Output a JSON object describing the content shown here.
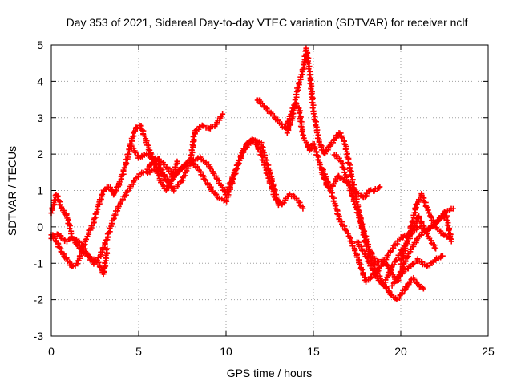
{
  "chart_data": {
    "type": "scatter",
    "title": "Day 353 of 2021, Sidereal Day-to-day VTEC variation (SDTVAR) for receiver nclf",
    "xlabel": "GPS time / hours",
    "ylabel": "SDTVAR / TECUs",
    "xlim": [
      0,
      25
    ],
    "ylim": [
      -3,
      5
    ],
    "xticks": [
      0,
      5,
      10,
      15,
      20,
      25
    ],
    "yticks": [
      -3,
      -2,
      -1,
      0,
      1,
      2,
      3,
      4,
      5
    ],
    "grid": true,
    "marker": "plus",
    "color": "#ff0000",
    "series": [
      {
        "x": [
          0.0,
          0.3,
          0.6,
          0.9,
          1.2,
          1.5,
          1.8,
          2.1,
          2.4,
          2.7,
          3.0,
          3.2
        ],
        "y": [
          0.4,
          0.9,
          0.5,
          0.3,
          -0.3,
          -0.5,
          -0.7,
          -0.8,
          -0.9,
          -1.0,
          -1.3,
          -0.6
        ]
      },
      {
        "x": [
          0.0,
          0.3,
          0.6,
          0.9,
          1.2,
          1.5,
          1.8,
          2.1,
          2.4,
          2.7,
          3.0,
          3.3,
          3.6,
          3.9,
          4.2,
          4.5,
          4.8,
          5.1,
          5.4,
          5.7,
          6.0,
          6.3,
          6.6,
          6.9,
          7.2
        ],
        "y": [
          -0.2,
          -0.4,
          -0.7,
          -0.9,
          -1.1,
          -1.0,
          -0.6,
          -0.2,
          0.1,
          0.6,
          1.0,
          1.1,
          0.9,
          1.2,
          1.6,
          2.2,
          2.7,
          2.8,
          2.4,
          2.0,
          1.6,
          1.2,
          1.0,
          1.3,
          1.8
        ]
      },
      {
        "x": [
          0.0,
          0.4,
          0.8,
          1.2,
          1.6,
          2.0,
          2.4,
          2.8,
          3.2,
          3.6,
          4.0,
          4.4,
          4.8,
          5.2,
          5.6,
          6.0,
          6.4,
          6.8,
          7.2,
          7.6,
          8.0,
          8.4,
          8.8,
          9.2,
          9.6,
          10.0,
          10.4,
          10.8,
          11.2,
          11.6,
          12.0,
          12.4,
          12.8,
          13.2,
          13.6,
          14.0,
          14.4
        ],
        "y": [
          -0.3,
          -0.2,
          -0.4,
          -0.3,
          -0.4,
          -0.7,
          -1.0,
          -0.8,
          -0.3,
          0.3,
          0.7,
          1.0,
          1.3,
          1.5,
          1.5,
          1.6,
          1.4,
          1.2,
          1.5,
          1.7,
          1.8,
          1.6,
          1.3,
          1.0,
          0.8,
          0.7,
          1.3,
          1.9,
          2.3,
          2.4,
          2.0,
          1.4,
          0.8,
          0.6,
          0.9,
          0.8,
          0.5
        ]
      },
      {
        "x": [
          4.5,
          5.0,
          5.5,
          6.0,
          6.5,
          7.0,
          7.5,
          8.0,
          8.5,
          9.0,
          9.5,
          10.0,
          10.5,
          11.0,
          11.5,
          12.0,
          12.5,
          13.0
        ],
        "y": [
          2.3,
          1.9,
          2.0,
          1.8,
          1.4,
          1.0,
          1.3,
          1.8,
          1.9,
          1.7,
          1.3,
          0.9,
          1.5,
          2.1,
          2.4,
          2.3,
          1.5,
          0.6
        ]
      },
      {
        "x": [
          5.5,
          6.0,
          6.5,
          7.0,
          7.5,
          8.0,
          8.2,
          8.6,
          9.0,
          9.4,
          9.8
        ],
        "y": [
          1.6,
          1.9,
          1.7,
          1.4,
          1.6,
          1.9,
          2.6,
          2.8,
          2.7,
          2.8,
          3.1
        ]
      },
      {
        "x": [
          11.8,
          12.2,
          12.6,
          13.0,
          13.4,
          13.8,
          14.0,
          14.2,
          14.4,
          14.6,
          14.8,
          15.0,
          15.2,
          15.5,
          15.8,
          16.1,
          16.4,
          16.7,
          17.0,
          17.3,
          17.6,
          17.9,
          18.2,
          18.5,
          18.8
        ],
        "y": [
          3.5,
          3.3,
          3.1,
          2.9,
          2.7,
          3.2,
          3.4,
          3.2,
          2.5,
          2.3,
          2.1,
          2.3,
          2.0,
          1.5,
          1.1,
          1.1,
          1.4,
          1.3,
          1.2,
          1.0,
          0.9,
          0.8,
          1.0,
          1.0,
          1.1
        ]
      },
      {
        "x": [
          13.5,
          13.8,
          14.1,
          14.4,
          14.6,
          14.8,
          15.0,
          15.3,
          15.6,
          15.9,
          16.2,
          16.5,
          16.8,
          17.1,
          17.4,
          17.7,
          18.0,
          18.3,
          18.6,
          18.9,
          19.2,
          19.5,
          19.8,
          20.1,
          20.4,
          20.7,
          21.0,
          21.3
        ],
        "y": [
          2.6,
          3.0,
          3.8,
          4.3,
          4.9,
          4.2,
          3.2,
          2.4,
          2.0,
          2.2,
          2.4,
          2.6,
          2.3,
          1.6,
          0.9,
          0.2,
          -0.5,
          -0.9,
          -1.2,
          -1.5,
          -1.7,
          -1.9,
          -2.0,
          -1.8,
          -1.6,
          -1.4,
          -1.6,
          -1.7
        ]
      },
      {
        "x": [
          15.5,
          16.0,
          16.5,
          17.0,
          17.5,
          18.0,
          18.5,
          19.0,
          19.5,
          20.0,
          20.5,
          21.0,
          21.5,
          22.0,
          22.5,
          23.0
        ],
        "y": [
          1.6,
          1.0,
          0.2,
          -0.2,
          -0.8,
          -1.5,
          -1.3,
          -1.0,
          -0.6,
          -0.3,
          -0.2,
          0.0,
          -0.1,
          0.1,
          0.4,
          0.5
        ]
      },
      {
        "x": [
          16.2,
          16.6,
          17.0,
          17.4,
          17.8,
          18.2,
          18.6,
          19.0,
          19.4,
          19.8,
          20.2,
          20.6,
          21.0,
          21.4,
          21.8,
          22.2,
          22.6,
          22.9
        ],
        "y": [
          2.0,
          1.8,
          1.2,
          0.6,
          0.0,
          -0.6,
          -1.0,
          -0.9,
          -1.2,
          -1.5,
          -1.0,
          -0.6,
          -0.3,
          -0.1,
          0.0,
          0.2,
          0.3,
          -0.4
        ]
      },
      {
        "x": [
          17.5,
          18.0,
          18.5,
          19.0,
          19.5,
          20.0,
          20.5,
          21.0,
          21.5,
          22.0
        ],
        "y": [
          -0.4,
          -0.8,
          -1.3,
          -1.6,
          -1.1,
          -0.7,
          -0.3,
          0.3,
          -0.2,
          -0.6
        ]
      },
      {
        "x": [
          19.5,
          20.0,
          20.5,
          21.0,
          21.5,
          22.0,
          22.4
        ],
        "y": [
          -1.6,
          -1.3,
          -1.1,
          -0.9,
          -1.1,
          -0.9,
          -0.8
        ]
      },
      {
        "x": [
          20.0,
          20.3,
          20.6,
          20.9,
          21.2,
          21.6,
          22.0,
          22.4,
          22.8
        ],
        "y": [
          -1.0,
          -0.5,
          0.0,
          0.6,
          0.9,
          0.4,
          0.0,
          -0.2,
          -0.3
        ]
      }
    ]
  }
}
